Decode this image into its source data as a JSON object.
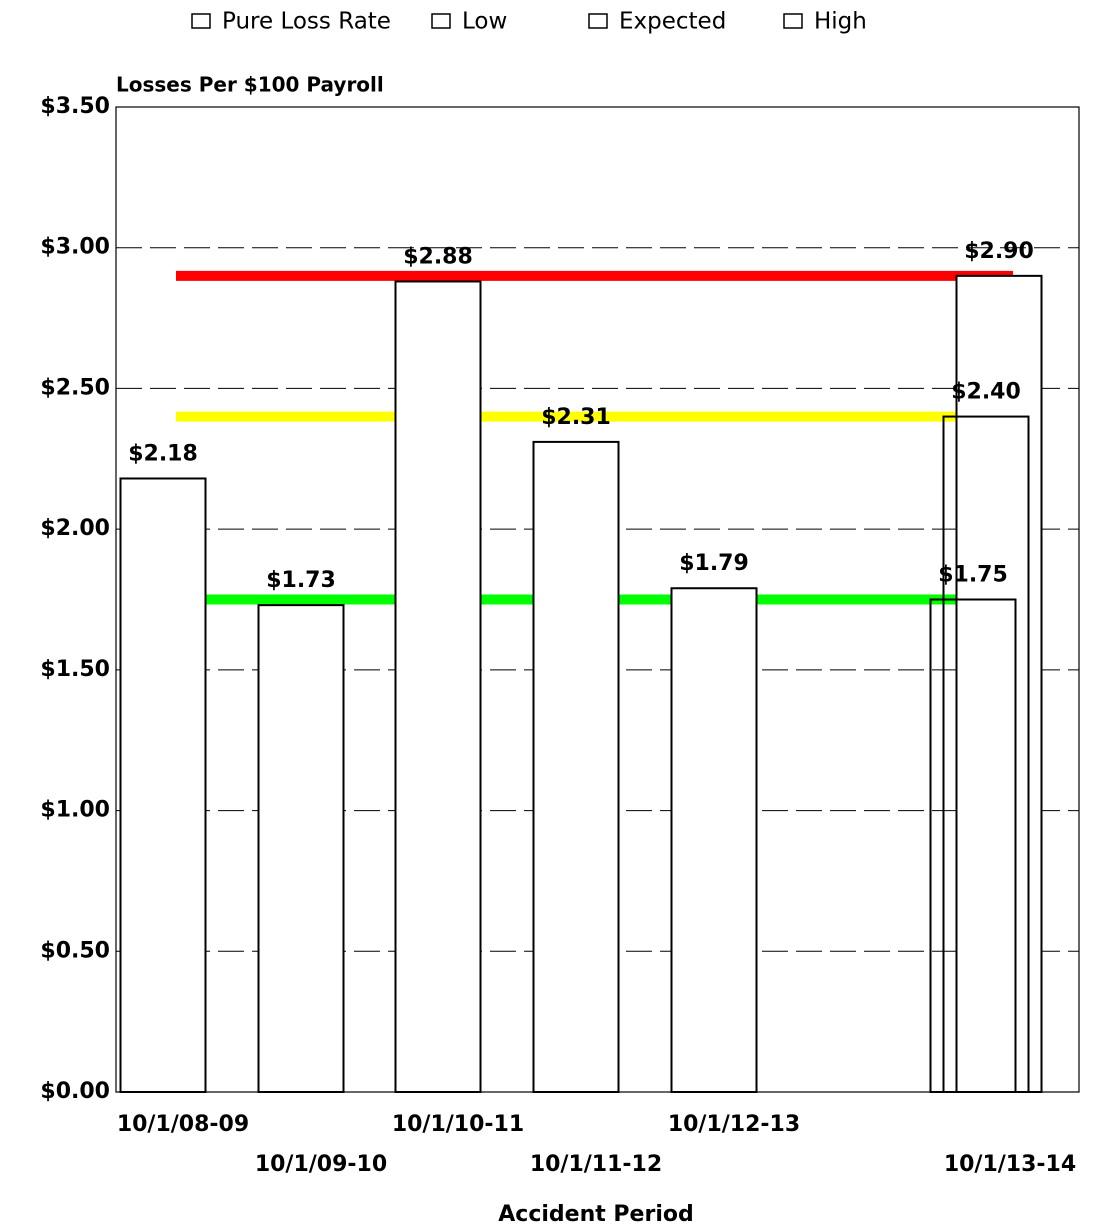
{
  "chart_data": {
    "type": "bar",
    "y_label": "Losses Per $100 Payroll",
    "x_label": "Accident Period",
    "categories": [
      "10/1/08-09",
      "10/1/09-10",
      "10/1/10-11",
      "10/1/11-12",
      "10/1/12-13",
      "10/1/13-14"
    ],
    "series": [
      {
        "name": "Pure Loss Rate",
        "color": "#ffffff",
        "values": [
          2.18,
          1.73,
          2.88,
          2.31,
          1.79,
          null
        ],
        "value_labels": [
          "$2.18",
          "$1.73",
          "$2.88",
          "$2.31",
          "$1.79",
          null
        ]
      },
      {
        "name": "Low",
        "color": "#00ff00",
        "values": [
          null,
          null,
          null,
          null,
          null,
          1.75
        ],
        "value_labels": [
          null,
          null,
          null,
          null,
          null,
          "$1.75"
        ]
      },
      {
        "name": "Expected",
        "color": "#ffff00",
        "values": [
          null,
          null,
          null,
          null,
          null,
          2.4
        ],
        "value_labels": [
          null,
          null,
          null,
          null,
          null,
          "$2.40"
        ]
      },
      {
        "name": "High",
        "color": "#ff0000",
        "values": [
          null,
          null,
          null,
          null,
          null,
          2.9
        ],
        "value_labels": [
          null,
          null,
          null,
          null,
          null,
          "$2.90"
        ]
      }
    ],
    "ylim": [
      0,
      3.5
    ],
    "yticks": [
      {
        "value": 0,
        "label": "$0.00"
      },
      {
        "value": 0.5,
        "label": "$0.50"
      },
      {
        "value": 1,
        "label": "$1.00"
      },
      {
        "value": 1.5,
        "label": "$1.50"
      },
      {
        "value": 2,
        "label": "$2.00"
      },
      {
        "value": 2.5,
        "label": "$2.50"
      },
      {
        "value": 3,
        "label": "$3.00"
      },
      {
        "value": 3.5,
        "label": "$3.50"
      }
    ],
    "grid": true,
    "legend": "top"
  }
}
